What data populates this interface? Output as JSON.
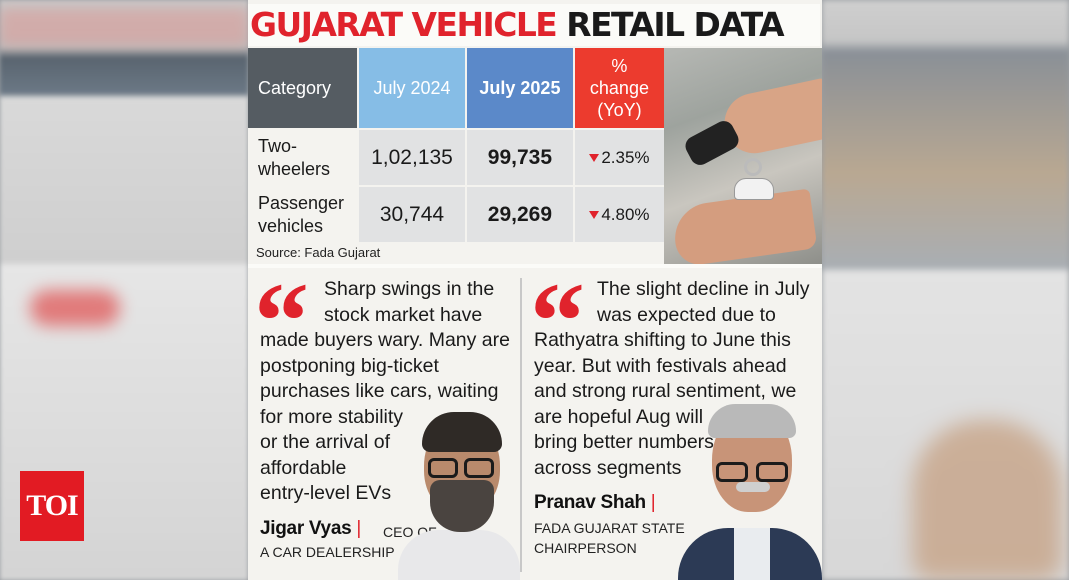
{
  "badge": {
    "label": "TOI"
  },
  "title": {
    "red_part": "GUJARAT VEHICLE",
    "black_part": "RETAIL DATA"
  },
  "table": {
    "headers": {
      "category": "Category",
      "july_2024": "July 2024",
      "july_2025": "July 2025",
      "change_line1": "%",
      "change_line2": "change",
      "change_line3": "(YoY)"
    },
    "rows": [
      {
        "category_line1": "Two-",
        "category_line2": "wheelers",
        "july_2024": "1,02,135",
        "july_2025": "99,735",
        "change": "2.35%"
      },
      {
        "category_line1": "Passenger",
        "category_line2": "vehicles",
        "july_2024": "30,744",
        "july_2025": "29,269",
        "change": "4.80%"
      }
    ],
    "source": "Source: Fada Gujarat"
  },
  "quotes": [
    {
      "lines": [
        "Sharp swings in the",
        "stock market have",
        "made buyers wary. Many are",
        "postponing big-ticket",
        "purchases like cars, waiting",
        "for more stability",
        "or the arrival of",
        "affordable",
        "entry-level EVs"
      ],
      "name": "Jigar Vyas",
      "role_line1": "CEO OF",
      "role_line2": "A CAR DEALERSHIP"
    },
    {
      "lines": [
        "The slight decline in July",
        "was expected due to",
        "Rathyatra shifting to June this",
        "year. But with festivals ahead",
        "and strong rural sentiment, we",
        "are hopeful Aug will",
        "bring better numbers",
        "across segments"
      ],
      "name": "Pranav Shah",
      "role_line1": "FADA GUJARAT STATE",
      "role_line2": "CHAIRPERSON"
    }
  ],
  "colors": {
    "accent_red": "#e0232c",
    "header_gray": "#555c62",
    "header_light_blue": "#86bde6",
    "header_blue": "#5b89c9",
    "header_red": "#ec3b2e"
  }
}
